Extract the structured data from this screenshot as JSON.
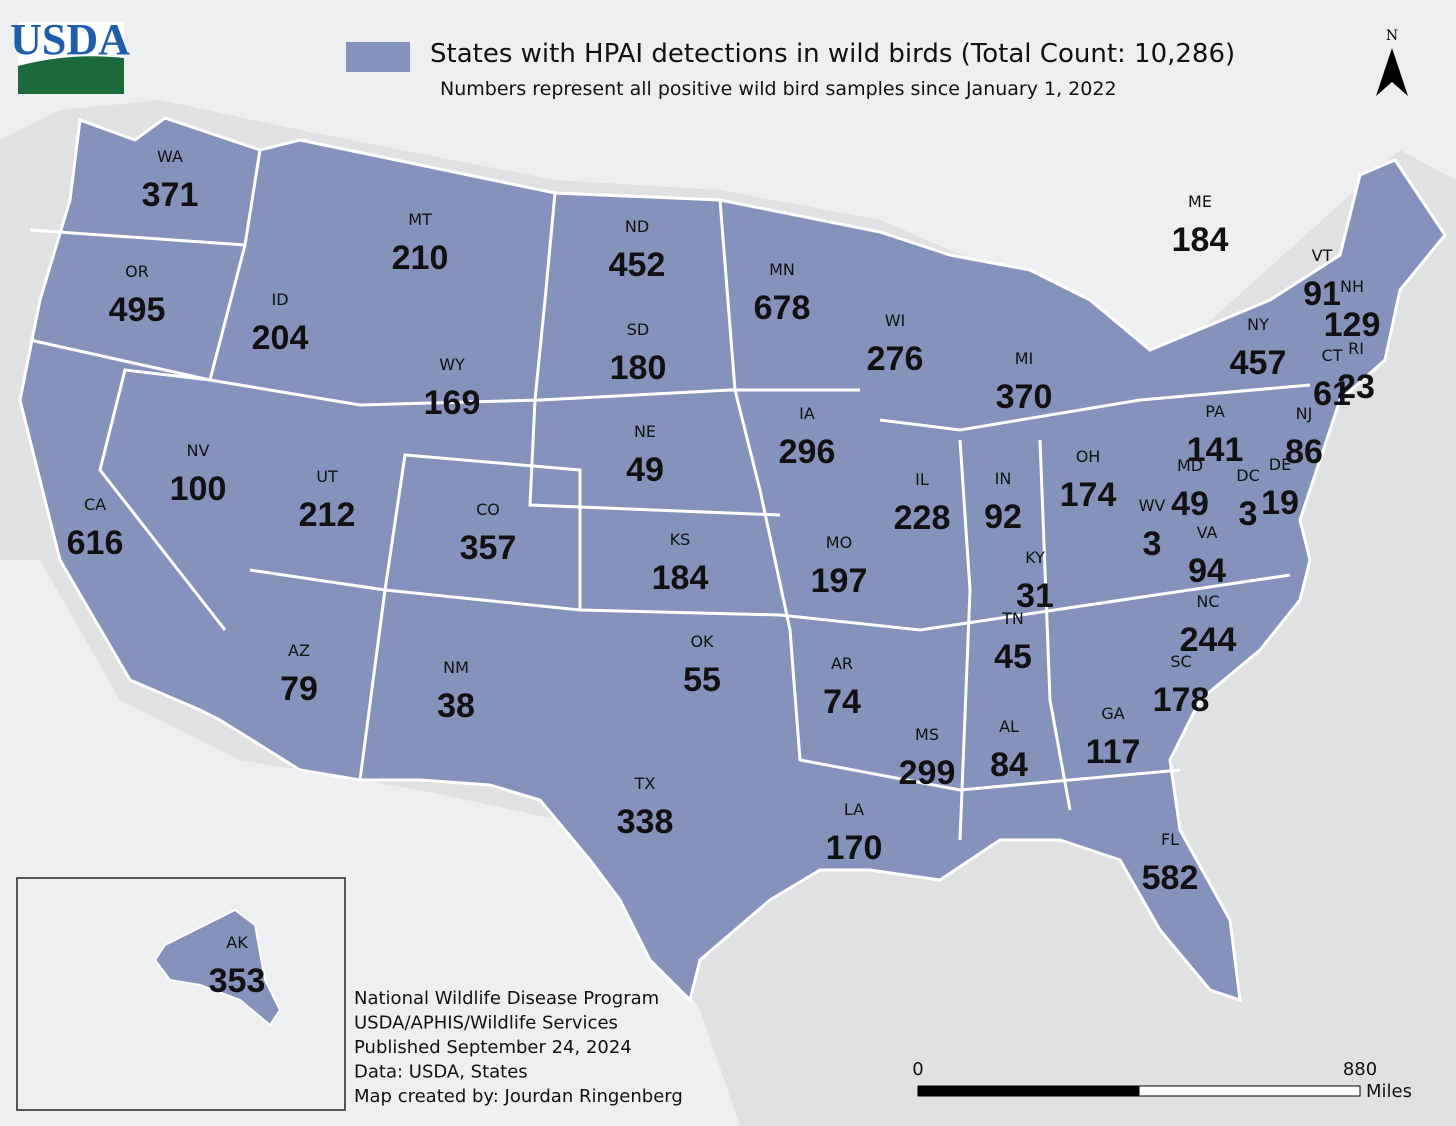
{
  "logo": "USDA",
  "title": "States with HPAI detections in wild birds (Total Count: 10,286)",
  "subtitle": "Numbers represent all positive wild bird samples since January 1, 2022",
  "north_label": "N",
  "states": [
    {
      "abbr": "WA",
      "count": 371
    },
    {
      "abbr": "OR",
      "count": 495
    },
    {
      "abbr": "ID",
      "count": 204
    },
    {
      "abbr": "MT",
      "count": 210
    },
    {
      "abbr": "ND",
      "count": 452
    },
    {
      "abbr": "MN",
      "count": 678
    },
    {
      "abbr": "WI",
      "count": 276
    },
    {
      "abbr": "MI",
      "count": 370
    },
    {
      "abbr": "ME",
      "count": 184
    },
    {
      "abbr": "VT",
      "count": 91
    },
    {
      "abbr": "NH",
      "count": 129
    },
    {
      "abbr": "NY",
      "count": 457
    },
    {
      "abbr": "CT",
      "count": 61
    },
    {
      "abbr": "RI",
      "count": 23
    },
    {
      "abbr": "NJ",
      "count": 86
    },
    {
      "abbr": "PA",
      "count": 141
    },
    {
      "abbr": "DE",
      "count": 19
    },
    {
      "abbr": "DC",
      "count": 3
    },
    {
      "abbr": "MD",
      "count": 49
    },
    {
      "abbr": "WV",
      "count": 3
    },
    {
      "abbr": "VA",
      "count": 94
    },
    {
      "abbr": "OH",
      "count": 174
    },
    {
      "abbr": "IN",
      "count": 92
    },
    {
      "abbr": "IL",
      "count": 228
    },
    {
      "abbr": "IA",
      "count": 296
    },
    {
      "abbr": "SD",
      "count": 180
    },
    {
      "abbr": "NE",
      "count": 49
    },
    {
      "abbr": "WY",
      "count": 169
    },
    {
      "abbr": "NV",
      "count": 100
    },
    {
      "abbr": "UT",
      "count": 212
    },
    {
      "abbr": "CA",
      "count": 616
    },
    {
      "abbr": "CO",
      "count": 357
    },
    {
      "abbr": "KS",
      "count": 184
    },
    {
      "abbr": "MO",
      "count": 197
    },
    {
      "abbr": "KY",
      "count": 31
    },
    {
      "abbr": "NC",
      "count": 244
    },
    {
      "abbr": "TN",
      "count": 45
    },
    {
      "abbr": "SC",
      "count": 178
    },
    {
      "abbr": "OK",
      "count": 55
    },
    {
      "abbr": "AR",
      "count": 74
    },
    {
      "abbr": "AZ",
      "count": 79
    },
    {
      "abbr": "NM",
      "count": 38
    },
    {
      "abbr": "GA",
      "count": 117
    },
    {
      "abbr": "AL",
      "count": 84
    },
    {
      "abbr": "MS",
      "count": 299
    },
    {
      "abbr": "LA",
      "count": 170
    },
    {
      "abbr": "TX",
      "count": 338
    },
    {
      "abbr": "FL",
      "count": 582
    },
    {
      "abbr": "AK",
      "count": 353
    }
  ],
  "credits": [
    "National Wildlife Disease Program",
    "USDA/APHIS/Wildlife Services",
    "Published September 24, 2024",
    "Data: USDA, States",
    "Map created by: Jourdan Ringenberg"
  ],
  "scale_bar": {
    "start": "0",
    "end": "880",
    "unit": "Miles"
  }
}
